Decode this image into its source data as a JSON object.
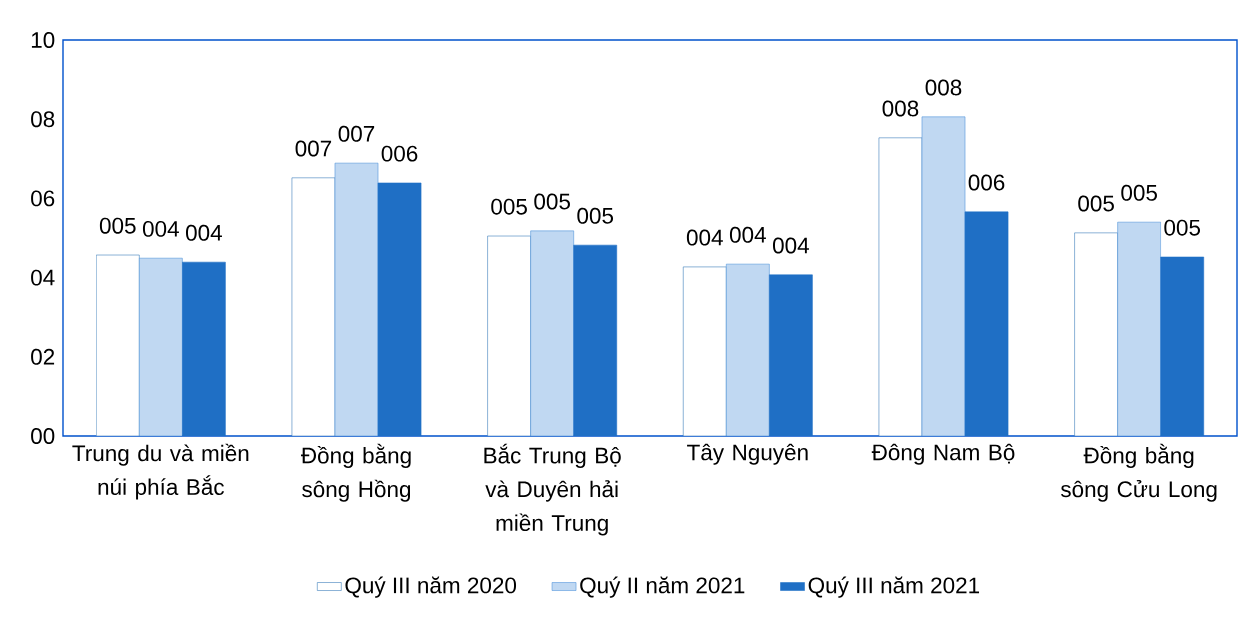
{
  "chart_data": {
    "type": "bar",
    "categories": [
      "Trung du và miền núi phía Bắc",
      "Đồng bằng sông Hồng",
      "Bắc Trung Bộ và Duyên hải miền Trung",
      "Tây Nguyên",
      "Đông Nam Bộ",
      "Đồng bằng sông Cửu Long"
    ],
    "series": [
      {
        "name": "Quý III năm 2020",
        "color": "#2e75b6",
        "values": [
          4.57,
          6.52,
          5.05,
          4.27,
          7.53,
          5.13
        ],
        "value_labels": [
          "005",
          "007",
          "005",
          "004",
          "008",
          "005"
        ]
      },
      {
        "name": "Quý II năm 2021",
        "color": "#4a90d9",
        "values": [
          4.49,
          6.89,
          5.18,
          4.34,
          8.06,
          5.4
        ],
        "value_labels": [
          "004",
          "007",
          "005",
          "004",
          "008",
          "005"
        ]
      },
      {
        "name": "Quý III năm 2021",
        "color": "#1f6fc5",
        "values": [
          4.39,
          6.39,
          4.82,
          4.07,
          5.66,
          4.52
        ],
        "value_labels": [
          "004",
          "006",
          "005",
          "004",
          "006",
          "005"
        ]
      }
    ],
    "ylim": [
      0,
      10
    ],
    "yticks": [
      {
        "value": 0,
        "label": "00"
      },
      {
        "value": 2,
        "label": "02"
      },
      {
        "value": 4,
        "label": "04"
      },
      {
        "value": 6,
        "label": "06"
      },
      {
        "value": 8,
        "label": "08"
      },
      10
    ],
    "legend": "bottom"
  }
}
